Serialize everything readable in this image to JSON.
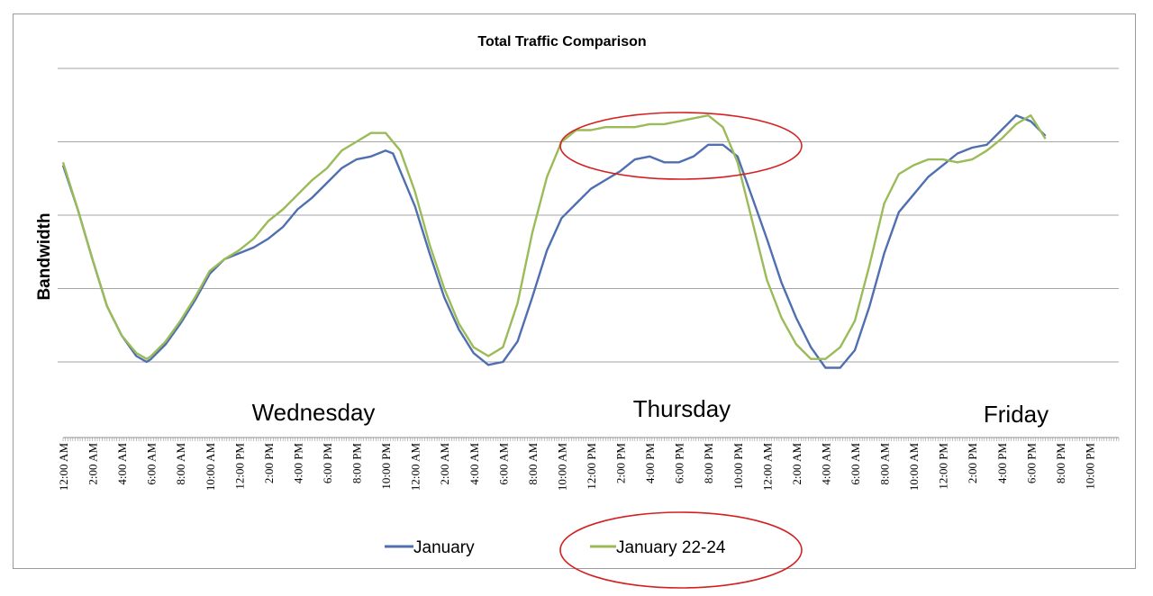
{
  "chart_data": {
    "type": "line",
    "title": "Total Traffic Comparison",
    "xlabel": "",
    "ylabel": "Bandwidth",
    "y_tick_labels_shown": false,
    "ylim": [
      0,
      100
    ],
    "grid": true,
    "legend_position": "bottom",
    "day_labels": [
      "Wednesday",
      "Thursday",
      "Friday"
    ],
    "x_tick_labels": [
      "12:00 AM",
      "2:00 AM",
      "4:00 AM",
      "6:00 AM",
      "8:00 AM",
      "10:00 AM",
      "12:00 PM",
      "2:00 PM",
      "4:00 PM",
      "6:00 PM",
      "8:00 PM",
      "10:00 PM",
      "12:00 AM",
      "2:00 AM",
      "4:00 AM",
      "6:00 AM",
      "8:00 AM",
      "10:00 AM",
      "12:00 PM",
      "2:00 PM",
      "4:00 PM",
      "6:00 PM",
      "8:00 PM",
      "10:00 PM",
      "12:00 AM",
      "2:00 AM",
      "4:00 AM",
      "6:00 AM",
      "8:00 AM",
      "10:00 AM",
      "12:00 PM",
      "2:00 PM",
      "4:00 PM",
      "6:00 PM",
      "8:00 PM",
      "10:00 PM"
    ],
    "x_hours": [
      0,
      2,
      4,
      6,
      8,
      10,
      12,
      14,
      16,
      18,
      20,
      22,
      24,
      26,
      28,
      30,
      32,
      34,
      36,
      38,
      40,
      42,
      44,
      46,
      48,
      50,
      52,
      54,
      56,
      58,
      60,
      62,
      64,
      66,
      68,
      70
    ],
    "x_range_hours": [
      0,
      72
    ],
    "series": [
      {
        "name": "January",
        "color": "#4f6fb0",
        "points": [
          [
            0,
            67
          ],
          [
            1,
            52
          ],
          [
            2,
            35
          ],
          [
            3,
            19
          ],
          [
            4,
            9
          ],
          [
            5,
            2
          ],
          [
            5.7,
            0
          ],
          [
            6,
            1
          ],
          [
            7,
            6
          ],
          [
            8,
            13
          ],
          [
            9,
            21
          ],
          [
            10,
            30
          ],
          [
            11,
            35
          ],
          [
            12,
            37
          ],
          [
            13,
            39
          ],
          [
            14,
            42
          ],
          [
            15,
            46
          ],
          [
            16,
            52
          ],
          [
            17,
            56
          ],
          [
            18,
            61
          ],
          [
            19,
            66
          ],
          [
            20,
            69
          ],
          [
            21,
            70
          ],
          [
            22,
            72
          ],
          [
            22.5,
            71
          ],
          [
            23,
            65
          ],
          [
            24,
            53
          ],
          [
            25,
            37
          ],
          [
            26,
            22
          ],
          [
            27,
            11
          ],
          [
            28,
            3
          ],
          [
            29,
            -1
          ],
          [
            30,
            0
          ],
          [
            31,
            7
          ],
          [
            32,
            22
          ],
          [
            33,
            38
          ],
          [
            34,
            49
          ],
          [
            35,
            54
          ],
          [
            36,
            59
          ],
          [
            37,
            62
          ],
          [
            38,
            65
          ],
          [
            39,
            69
          ],
          [
            40,
            70
          ],
          [
            41,
            68
          ],
          [
            42,
            68
          ],
          [
            43,
            70
          ],
          [
            44,
            74
          ],
          [
            45,
            74
          ],
          [
            46,
            70
          ],
          [
            47,
            56
          ],
          [
            48,
            42
          ],
          [
            49,
            27
          ],
          [
            50,
            15
          ],
          [
            51,
            5
          ],
          [
            52,
            -2
          ],
          [
            53,
            -2
          ],
          [
            54,
            4
          ],
          [
            55,
            19
          ],
          [
            56,
            37
          ],
          [
            57,
            51
          ],
          [
            58,
            57
          ],
          [
            59,
            63
          ],
          [
            60,
            67
          ],
          [
            61,
            71
          ],
          [
            62,
            73
          ],
          [
            63,
            74
          ],
          [
            64,
            79
          ],
          [
            65,
            84
          ],
          [
            66,
            82
          ],
          [
            67,
            77
          ]
        ]
      },
      {
        "name": "January 22-24",
        "color": "#9bbb59",
        "points": [
          [
            0,
            68
          ],
          [
            1,
            52
          ],
          [
            2,
            35
          ],
          [
            3,
            19
          ],
          [
            4,
            9
          ],
          [
            5,
            3
          ],
          [
            5.7,
            1
          ],
          [
            6,
            2
          ],
          [
            7,
            7
          ],
          [
            8,
            14
          ],
          [
            9,
            22
          ],
          [
            10,
            31
          ],
          [
            11,
            35
          ],
          [
            12,
            38
          ],
          [
            13,
            42
          ],
          [
            14,
            48
          ],
          [
            15,
            52
          ],
          [
            16,
            57
          ],
          [
            17,
            62
          ],
          [
            18,
            66
          ],
          [
            19,
            72
          ],
          [
            20,
            75
          ],
          [
            21,
            78
          ],
          [
            22,
            78
          ],
          [
            23,
            72
          ],
          [
            24,
            58
          ],
          [
            25,
            40
          ],
          [
            26,
            25
          ],
          [
            27,
            13
          ],
          [
            28,
            5
          ],
          [
            29,
            2
          ],
          [
            30,
            5
          ],
          [
            31,
            20
          ],
          [
            32,
            44
          ],
          [
            33,
            63
          ],
          [
            34,
            75
          ],
          [
            35,
            79
          ],
          [
            36,
            79
          ],
          [
            37,
            80
          ],
          [
            38,
            80
          ],
          [
            39,
            80
          ],
          [
            40,
            81
          ],
          [
            41,
            81
          ],
          [
            42,
            82
          ],
          [
            43,
            83
          ],
          [
            44,
            84
          ],
          [
            45,
            80
          ],
          [
            46,
            68
          ],
          [
            47,
            48
          ],
          [
            48,
            28
          ],
          [
            49,
            15
          ],
          [
            50,
            6
          ],
          [
            51,
            1
          ],
          [
            52,
            1
          ],
          [
            53,
            5
          ],
          [
            54,
            14
          ],
          [
            55,
            33
          ],
          [
            56,
            54
          ],
          [
            57,
            64
          ],
          [
            58,
            67
          ],
          [
            59,
            69
          ],
          [
            60,
            69
          ],
          [
            61,
            68
          ],
          [
            62,
            69
          ],
          [
            63,
            72
          ],
          [
            64,
            76
          ],
          [
            65,
            81
          ],
          [
            66,
            84
          ],
          [
            67,
            76
          ]
        ]
      }
    ],
    "annotations": [
      {
        "type": "ellipse",
        "color": "#d42020",
        "target": "Thursday daytime peak"
      },
      {
        "type": "ellipse",
        "color": "#d42020",
        "target": "January 22-24 legend entry"
      }
    ]
  }
}
